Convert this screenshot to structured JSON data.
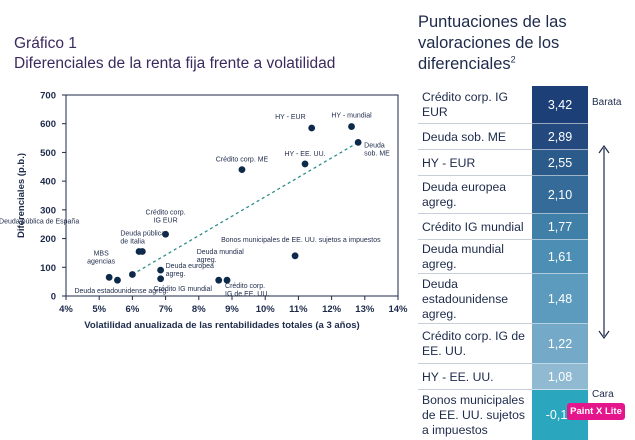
{
  "chart_title": {
    "line1": "Gráfico 1",
    "line2": "Diferenciales de la renta fija frente a volatilidad"
  },
  "chart_data": {
    "type": "scatter",
    "title": "Diferenciales de la renta fija frente a volatilidad",
    "xlabel": "Volatilidad anualizada de las rentabilidades totales (a 3 años)",
    "ylabel": "Diferenciales (p.b.)",
    "xlim": [
      4,
      14
    ],
    "ylim": [
      0,
      700
    ],
    "x_ticks": [
      "4%",
      "5%",
      "6%",
      "7%",
      "8%",
      "9%",
      "10%",
      "11%",
      "12%",
      "13%",
      "14%"
    ],
    "y_ticks": [
      "0",
      "100",
      "200",
      "300",
      "400",
      "500",
      "600",
      "700"
    ],
    "grid": false,
    "points": [
      {
        "label": "HY - EUR",
        "x": 11.4,
        "y": 585
      },
      {
        "label": "HY - mundial",
        "x": 12.6,
        "y": 590
      },
      {
        "label": "Deuda sob. ME",
        "x": 12.8,
        "y": 535
      },
      {
        "label": "HY - EE. UU.",
        "x": 11.2,
        "y": 460
      },
      {
        "label": "Crédito corp. ME",
        "x": 9.3,
        "y": 440
      },
      {
        "label": "Crédito corp. IG EUR",
        "x": 7.0,
        "y": 215
      },
      {
        "label": "Deuda pública de España",
        "x": 6.2,
        "y": 155
      },
      {
        "label": "Deuda pública de Italia",
        "x": 6.3,
        "y": 155
      },
      {
        "label": "MBS agencias",
        "x": 5.3,
        "y": 65
      },
      {
        "label": "Deuda estadounidense agreg.",
        "x": 5.55,
        "y": 55
      },
      {
        "label": "",
        "x": 6.0,
        "y": 75
      },
      {
        "label": "Deuda europea agreg.",
        "x": 6.85,
        "y": 90
      },
      {
        "label": "Crédito IG mundial",
        "x": 6.85,
        "y": 60
      },
      {
        "label": "Deuda mundial agreg.",
        "x": 8.6,
        "y": 55
      },
      {
        "label": "Crédito corp. IG de EE. UU.",
        "x": 8.85,
        "y": 55
      },
      {
        "label": "Bonos municipales de EE. UU. sujetos a impuestos",
        "x": 10.9,
        "y": 140
      }
    ],
    "trend_line": {
      "from": [
        6.0,
        75
      ],
      "to": [
        12.8,
        535
      ]
    },
    "colors": {
      "points": "#0e2a4a",
      "trend": "#2e8f8a"
    }
  },
  "scores": {
    "title_line1": "Puntuaciones de las",
    "title_line2": "valoraciones de los",
    "title_line3": "diferenciales",
    "title_sup": "2",
    "rows": [
      {
        "label": "Crédito corp. IG EUR",
        "value": "3,42"
      },
      {
        "label": "Deuda sob. ME",
        "value": "2,89"
      },
      {
        "label": "HY - EUR",
        "value": "2,55"
      },
      {
        "label": "Deuda europea agreg.",
        "value": "2,10"
      },
      {
        "label": "Crédito IG mundial",
        "value": "1,77"
      },
      {
        "label": "Deuda mundial agreg.",
        "value": "1,61"
      },
      {
        "label": "Deuda estadounidense agreg.",
        "value": "1,48"
      },
      {
        "label": "Crédito corp. IG de EE. UU.",
        "value": "1,22"
      },
      {
        "label": "HY - EE. UU.",
        "value": "1,08"
      },
      {
        "label": "Bonos municipales de EE. UU. sujetos a impuestos",
        "value": "-0,13"
      }
    ],
    "cell_colors": [
      "#1d3f77",
      "#23497f",
      "#2b5b8b",
      "#346b98",
      "#3f7fa8",
      "#4c8eb4",
      "#5c9bbe",
      "#74aac8",
      "#8fbad2",
      "#2aa6be"
    ],
    "label_top": "Barata",
    "label_bottom": "Cara"
  },
  "watermark": "Paint X Lite"
}
